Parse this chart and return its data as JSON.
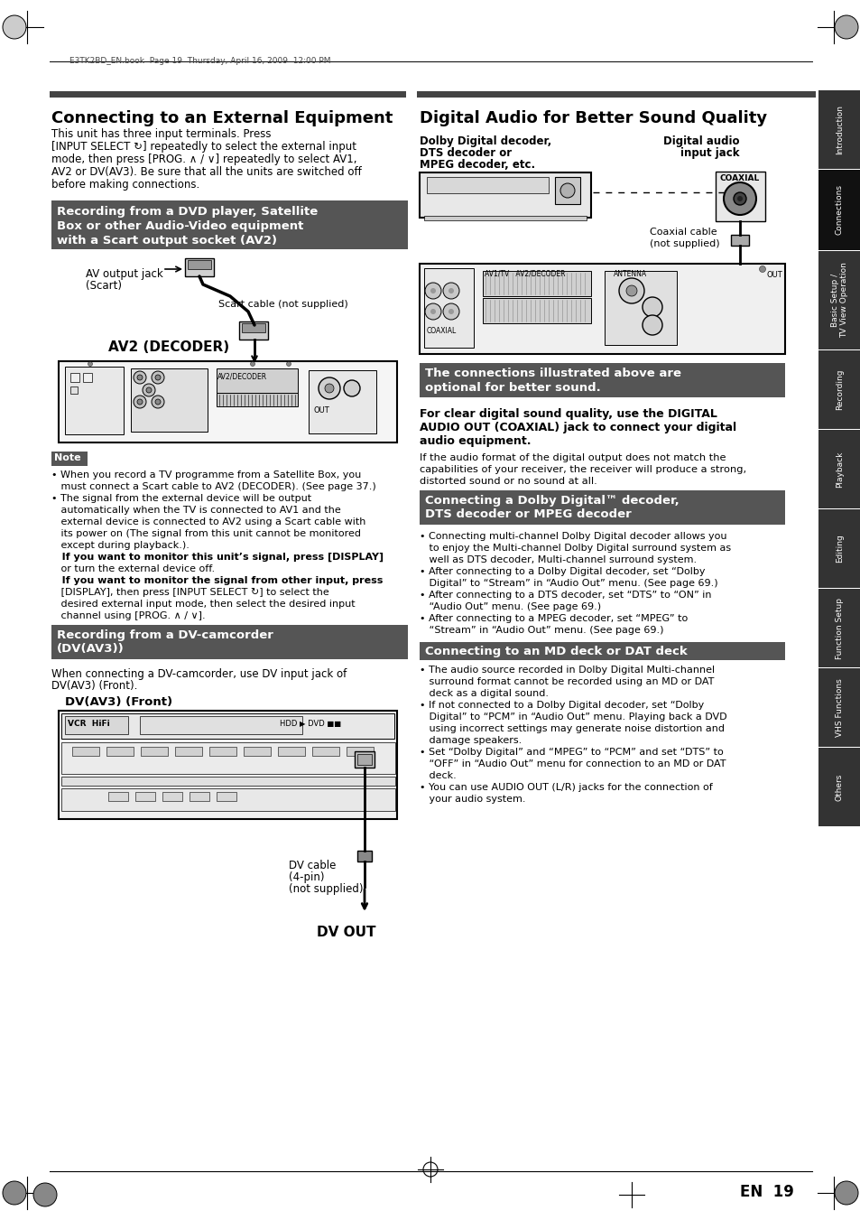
{
  "page_bg": "#ffffff",
  "header_text": "E3TK2BD_EN.book  Page 19  Thursday, April 16, 2009  12:00 PM",
  "left_title": "Connecting to an External Equipment",
  "right_title": "Digital Audio for Better Sound Quality",
  "page_num": "19",
  "tab_labels": [
    "Introduction",
    "Connections",
    "Basic Setup /\nTV View Operation",
    "Recording",
    "Playback",
    "Editing",
    "Function Setup",
    "VHS Functions",
    "Others"
  ],
  "tab_active": "Connections",
  "dark_gray": "#555555",
  "light_gray": "#888888",
  "mid_gray": "#aaaaaa",
  "black": "#000000",
  "white": "#ffffff"
}
